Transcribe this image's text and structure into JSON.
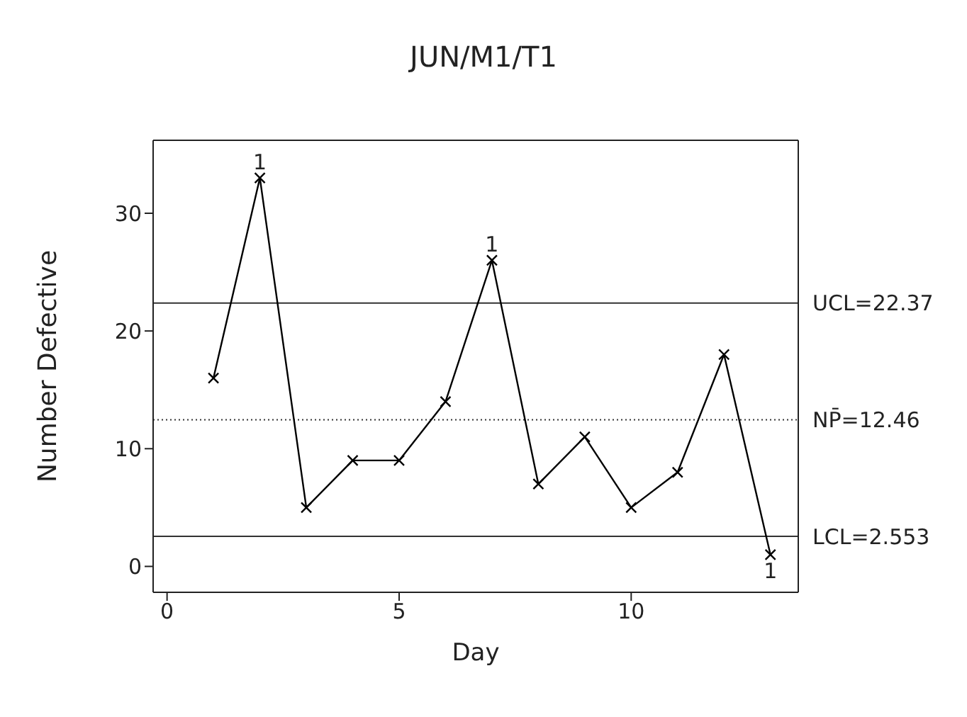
{
  "chart_data": {
    "type": "line",
    "title": "JUN/M1/T1",
    "xlabel": "Day",
    "ylabel": "Number Defective",
    "x": [
      1,
      2,
      3,
      4,
      5,
      6,
      7,
      8,
      9,
      10,
      11,
      12,
      13
    ],
    "series": [
      {
        "color": "#000000",
        "values": [
          16,
          33,
          5,
          9,
          9,
          14,
          26,
          7,
          11,
          5,
          8,
          18,
          1
        ]
      }
    ],
    "xlim": [
      -0.3,
      13.6
    ],
    "xticks": [
      0,
      5,
      10
    ],
    "ylim": [
      -2.2,
      36.2
    ],
    "yticks": [
      0,
      10,
      20,
      30
    ],
    "marker": "cross",
    "line_style": "solid",
    "grid": false,
    "legend": false,
    "ref_lines": [
      {
        "axis": "y",
        "value": 22.37,
        "label": "UCL=22.37",
        "line_style": "solid"
      },
      {
        "axis": "y",
        "value": 12.46,
        "label": "NP̄=12.46",
        "line_style": "dotted"
      },
      {
        "axis": "y",
        "value": 2.553,
        "label": "LCL=2.553",
        "line_style": "solid"
      }
    ],
    "annotations": [
      {
        "text": "1",
        "x": 2,
        "y": 33
      },
      {
        "text": "1",
        "x": 7,
        "y": 26
      },
      {
        "text": "1",
        "x": 13,
        "y": 1
      }
    ]
  }
}
